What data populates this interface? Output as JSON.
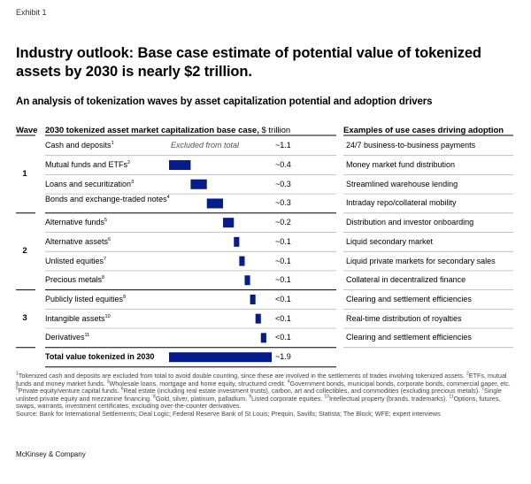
{
  "exhibit": "Exhibit 1",
  "title": "Industry outlook: Base case estimate of potential value of tokenized assets by 2030 is nearly $2 trillion.",
  "subtitle": "An analysis of tokenization waves by asset capitalization potential and adoption drivers",
  "headers": {
    "wave": "Wave",
    "chart": "2030 tokenized asset market capitalization base case,",
    "unit": "$ trillion",
    "use_cases": "Examples of use cases driving adoption"
  },
  "excluded_note": "Excluded from total",
  "chart_data": {
    "type": "bar",
    "subtype": "waterfall",
    "title": "2030 tokenized asset market capitalization base case, $ trillion",
    "categories": [
      "Cash and deposits",
      "Mutual funds and ETFs",
      "Loans and securitization",
      "Bonds and exchange-traded notes",
      "Alternative funds",
      "Alternative assets",
      "Unlisted equities",
      "Precious metals",
      "Publicly listed equities",
      "Intangible assets",
      "Derivatives"
    ],
    "footnote_refs": [
      "1",
      "2",
      "3",
      "4",
      "5",
      "6",
      "7",
      "8",
      "9",
      "10",
      "11"
    ],
    "values": [
      1.1,
      0.4,
      0.3,
      0.3,
      0.2,
      0.1,
      0.1,
      0.1,
      0.1,
      0.1,
      0.1
    ],
    "value_labels": [
      "~1.1",
      "~0.4",
      "~0.3",
      "~0.3",
      "~0.2",
      "~0.1",
      "~0.1",
      "~0.1",
      "<0.1",
      "<0.1",
      "<0.1"
    ],
    "waves": [
      1,
      1,
      1,
      1,
      2,
      2,
      2,
      2,
      3,
      3,
      3
    ],
    "included_in_total": [
      false,
      true,
      true,
      true,
      true,
      true,
      true,
      true,
      true,
      true,
      true
    ],
    "use_cases": [
      "24/7 business-to-business payments",
      "Money market fund distribution",
      "Streamlined warehouse lending",
      "Intraday repo/collateral mobility",
      "Distribution and investor onboarding",
      "Liquid secondary market",
      "Liquid private markets for secondary sales",
      "Collateral in decentralized finance",
      "Clearing and settlement efficiencies",
      "Real-time distribution of royalties",
      "Clearing and settlement efficiencies"
    ],
    "total": {
      "label": "Total value tokenized in 2030",
      "value": 1.9,
      "value_label": "~1.9"
    },
    "bar_color": "#051c8a"
  },
  "waves": [
    {
      "label": "1"
    },
    {
      "label": "2"
    },
    {
      "label": "3"
    }
  ],
  "footnotes": [
    {
      "ref": "1",
      "text": "Tokenized cash and deposits are excluded from total to avoid double counting, since these are involved in the settlements of trades involving tokenized assets."
    },
    {
      "ref": "2",
      "text": "ETFs, mutual funds and money market funds."
    },
    {
      "ref": "3",
      "text": "Wholesale loans, mortgage and home equity, structured credit."
    },
    {
      "ref": "4",
      "text": "Government bonds, municipal bonds, corporate bonds, commercial paper, etc."
    },
    {
      "ref": "5",
      "text": "Private equity/venture capital funds."
    },
    {
      "ref": "6",
      "text": "Real estate (including real estate investment trusts), carbon, art and collectibles, and commodities (excluding precious metals)."
    },
    {
      "ref": "7",
      "text": "Single unlisted private equity and mezzanine financing."
    },
    {
      "ref": "8",
      "text": "Gold, silver, platinum, palladium."
    },
    {
      "ref": "9",
      "text": "Listed corporate equities."
    },
    {
      "ref": "10",
      "text": "Intellectual property (brands, trademarks)."
    },
    {
      "ref": "11",
      "text": "Options, futures, swaps, warrants, investment certificates, excluding over-the-counter derivatives."
    }
  ],
  "source": "Source: Bank for International Settlements; Deal Logic; Federal Reserve Bank of St Louis; Prequin, Savills; Statista; The Block; WFE; expert interviews",
  "brand": "McKinsey & Company"
}
